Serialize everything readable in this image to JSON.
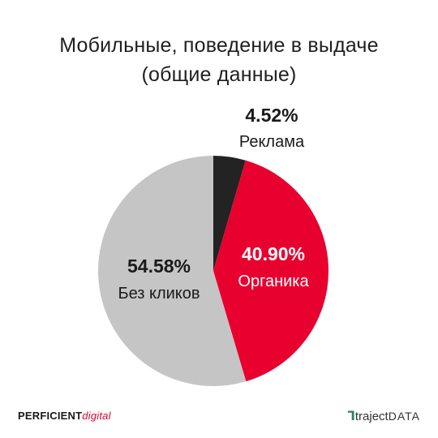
{
  "header": {
    "title_line1": "Мобильные, поведение в выдаче",
    "title_line2": "(общие данные)"
  },
  "chart_data": {
    "type": "pie",
    "slices": [
      {
        "label": "Реклама",
        "value": 4.52,
        "display": "4.52%",
        "color": "#232323"
      },
      {
        "label": "Органика",
        "value": 40.9,
        "display": "40.90%",
        "color": "#e8002f"
      },
      {
        "label": "Без кликов",
        "value": 54.58,
        "display": "54.58%",
        "color": "#c5c5c5"
      }
    ]
  },
  "footer": {
    "left_logo_main": "PERFICIENT",
    "left_logo_accent": "digital",
    "right_logo_mark": "ᒣ",
    "right_logo_word": "traject",
    "right_logo_suffix": "DATA"
  }
}
